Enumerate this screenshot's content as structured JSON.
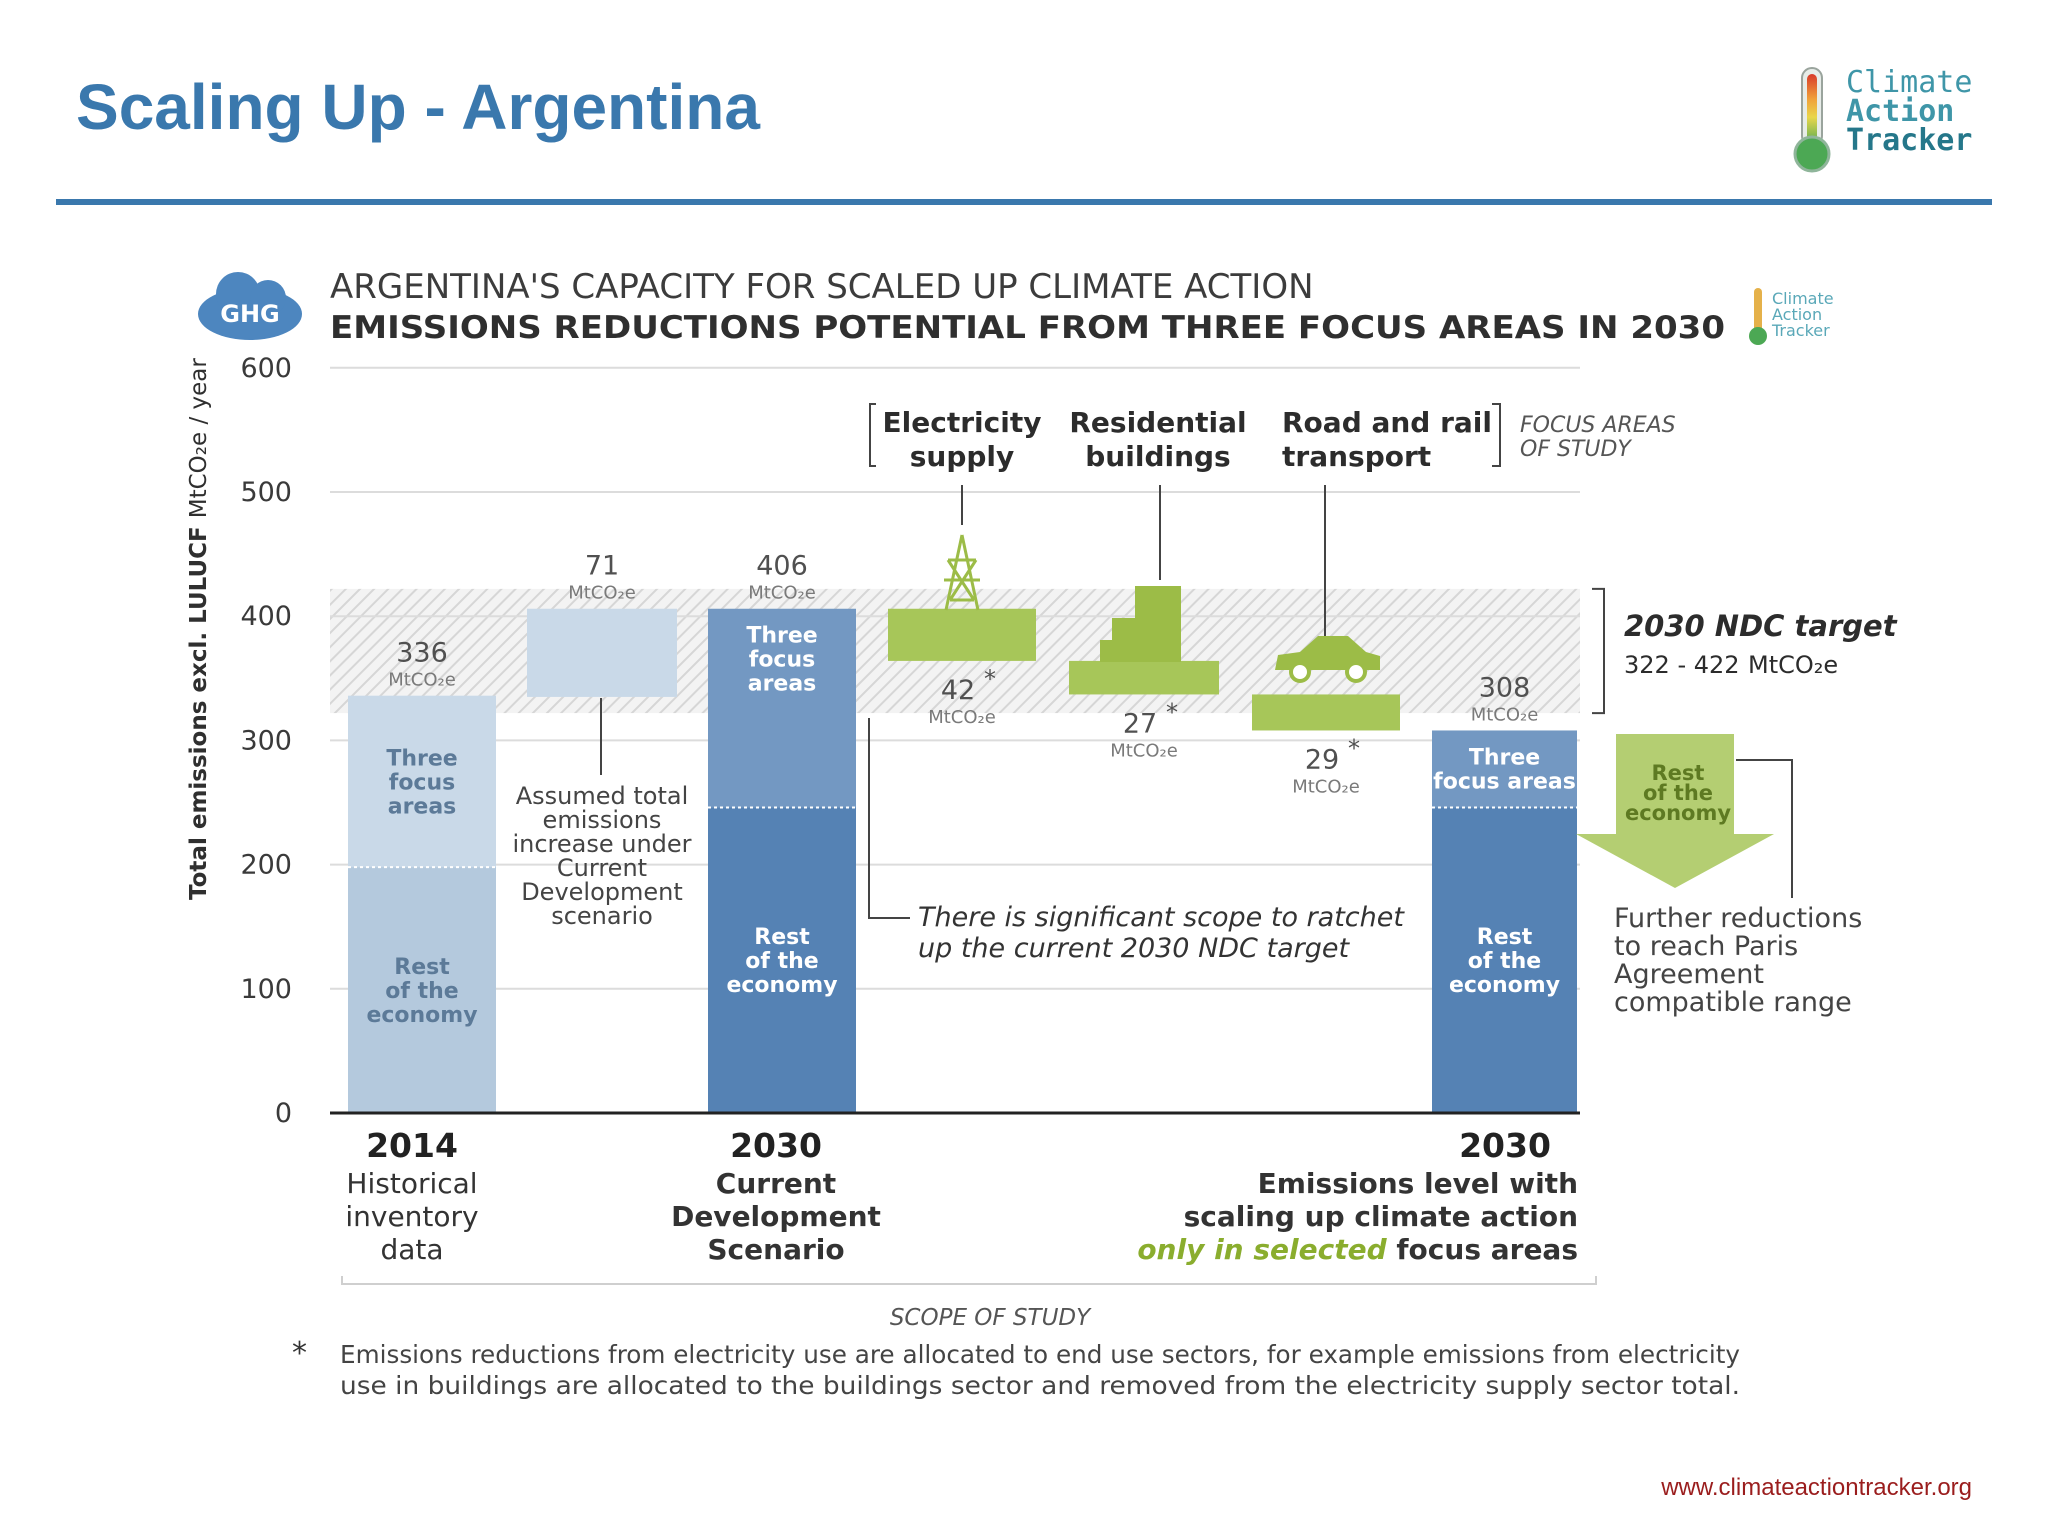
{
  "slide": {
    "title": "Scaling Up - Argentina",
    "url": "www.climateactiontracker.org"
  },
  "logo": {
    "lines": [
      "Climate",
      "Action",
      "Tracker"
    ]
  },
  "colors": {
    "title_blue": "#3a78ad",
    "bar_light_top": "#c9d9e8",
    "bar_light_bottom": "#b4c9dd",
    "bar_dark_top": "#7398c2",
    "bar_dark_bottom": "#5582b4",
    "green": "#a7c659",
    "ghg_cloud": "#4d86bf",
    "axis_text": "#3a3a3a",
    "footer_red": "#9a1d1d"
  },
  "chart_data": {
    "type": "bar",
    "badge": "GHG",
    "title": "ARGENTINA'S CAPACITY FOR SCALED UP CLIMATE ACTION",
    "subtitle": "EMISSIONS REDUCTIONS POTENTIAL FROM THREE FOCUS AREAS IN 2030",
    "ylabel_bold": "Total emissions excl. LULUCF",
    "ylabel_unit": "MtCO₂e / year",
    "ylim": [
      0,
      600
    ],
    "yticks": [
      0,
      100,
      200,
      300,
      400,
      500,
      600
    ],
    "grid": true,
    "unit_label": "MtCO₂e",
    "bars": [
      {
        "id": "hist-2014",
        "style": "light",
        "value": 336,
        "value_label": "336",
        "segments": [
          {
            "name": "Rest of the economy",
            "from": 0,
            "to": 198,
            "label": [
              "Rest",
              "of the",
              "economy"
            ]
          },
          {
            "name": "Three focus areas",
            "from": 198,
            "to": 336,
            "label": [
              "Three",
              "focus",
              "areas"
            ]
          }
        ]
      },
      {
        "id": "increase",
        "style": "light-float",
        "from": 335,
        "to": 406,
        "value_label": "71"
      },
      {
        "id": "current-2030",
        "style": "dark",
        "value": 406,
        "value_label": "406",
        "segments": [
          {
            "name": "Rest of the economy",
            "from": 0,
            "to": 246,
            "label": [
              "Rest",
              "of the",
              "economy"
            ]
          },
          {
            "name": "Three focus areas",
            "from": 246,
            "to": 406,
            "label": [
              "Three",
              "focus",
              "areas"
            ]
          }
        ]
      },
      {
        "id": "electricity",
        "style": "green",
        "from": 364,
        "to": 406,
        "value_label": "42"
      },
      {
        "id": "residential",
        "style": "green",
        "from": 337,
        "to": 364,
        "value_label": "27"
      },
      {
        "id": "transport",
        "style": "green",
        "from": 308,
        "to": 337,
        "value_label": "29"
      },
      {
        "id": "scaled-2030",
        "style": "dark",
        "value": 308,
        "value_label": "308",
        "segments": [
          {
            "name": "Rest of the economy",
            "from": 0,
            "to": 246,
            "label": [
              "Rest",
              "of the",
              "economy"
            ]
          },
          {
            "name": "Three focus areas",
            "from": 246,
            "to": 308,
            "label": [
              "Three",
              "focus areas"
            ]
          }
        ]
      }
    ],
    "focus_areas": {
      "items": [
        {
          "name": "electricity",
          "label": [
            "Electricity",
            "supply"
          ]
        },
        {
          "name": "residential",
          "label": [
            "Residential",
            "buildings"
          ]
        },
        {
          "name": "transport",
          "label": [
            "Road and rail",
            "transport"
          ]
        }
      ],
      "bracket_note": [
        "FOCUS AREAS",
        "OF STUDY"
      ]
    },
    "ndc_target": {
      "range": [
        322,
        422
      ],
      "title": "2030 NDC target",
      "range_label": "322 - 422",
      "unit": "MtCO₂e"
    },
    "x_groups": [
      {
        "year": "2014",
        "desc": [
          "Historical",
          "inventory",
          "data"
        ],
        "desc_bold": false
      },
      {
        "year": "2030",
        "desc": [
          "Current",
          "Development",
          "Scenario"
        ],
        "desc_bold": true
      },
      {
        "year": "2030",
        "desc": [
          "Emissions level with",
          "scaling up climate action"
        ],
        "desc_bold": true,
        "last_line_green": "only in selected",
        "last_line_rest": "focus areas"
      }
    ],
    "annotations": {
      "assumed_increase": [
        "Assumed total",
        "emissions",
        "increase under",
        "Current",
        "Development",
        "scenario"
      ],
      "ratchet": [
        "There is significant scope to ratchet",
        "up the current 2030 NDC target"
      ],
      "rest_arrow": [
        "Rest",
        "of the",
        "economy"
      ],
      "further_reductions": [
        "Further reductions",
        "to reach Paris",
        "Agreement",
        "compatible range"
      ],
      "scope_of_study": "SCOPE OF STUDY"
    },
    "footnote": {
      "marker": "*",
      "lines": [
        "Emissions reductions from electricity use are allocated to end use sectors, for example emissions from electricity",
        "use in buildings are allocated to the buildings sector and removed from the electricity supply sector total."
      ]
    }
  }
}
